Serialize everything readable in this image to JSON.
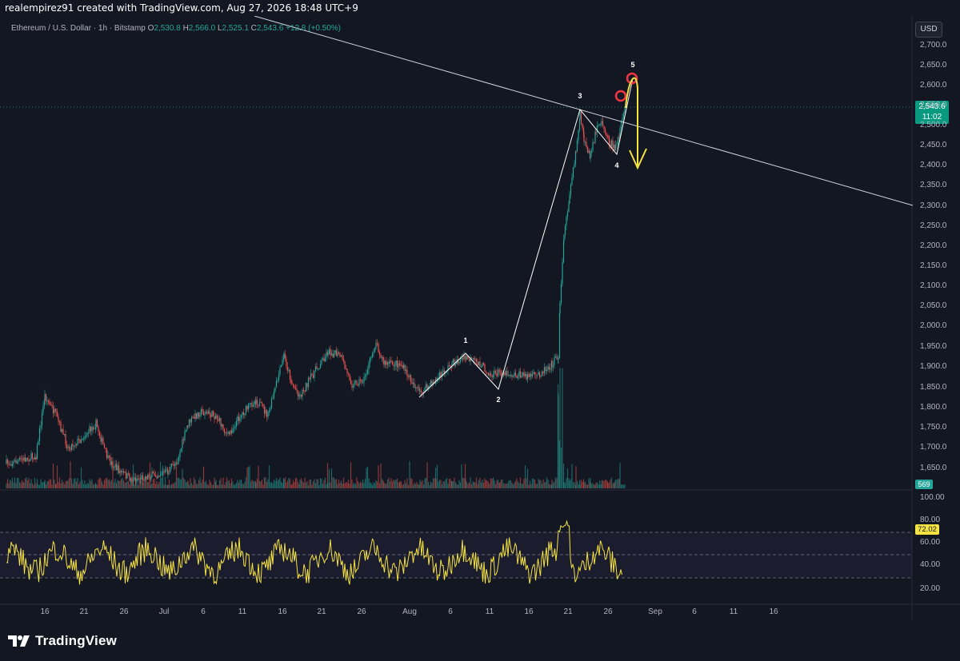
{
  "header": {
    "caption": "realempirez91 created with TradingView.com, Aug 27, 2026 18:48 UTC+9"
  },
  "symbol": {
    "name": "Ethereum / U.S. Dollar · 1h · Bitstamp",
    "o_label": "O",
    "o": "2,530.8",
    "h_label": "H",
    "h": "2,566.0",
    "l_label": "L",
    "l": "2,525.1",
    "c_label": "C",
    "c": "2,543.6",
    "change": "+12.8 (+0.50%)"
  },
  "currency_button": "USD",
  "price_tag": {
    "price": "2,543.6",
    "countdown": "11:02"
  },
  "volume_tag": "569",
  "rsi_tag": "72.02",
  "price_axis": [
    "2,700.0",
    "2,650.0",
    "2,600.0",
    "2,550.0",
    "2,500.0",
    "2,450.0",
    "2,400.0",
    "2,350.0",
    "2,300.0",
    "2,250.0",
    "2,200.0",
    "2,150.0",
    "2,100.0",
    "2,050.0",
    "2,000.0",
    "1,950.0",
    "1,900.0",
    "1,850.0",
    "1,800.0",
    "1,750.0",
    "1,700.0",
    "1,650.0"
  ],
  "rsi_axis": [
    "100.00",
    "80.00",
    "60.00",
    "40.00",
    "20.00"
  ],
  "time_axis": [
    "16",
    "21",
    "26",
    "Jul",
    "6",
    "11",
    "16",
    "21",
    "26",
    "Aug",
    "6",
    "11",
    "16",
    "21",
    "26",
    "Sep",
    "6",
    "11",
    "16"
  ],
  "wave_labels": [
    "1",
    "2",
    "3",
    "4",
    "5"
  ],
  "colors": {
    "background": "#131722",
    "up": "#26a69a",
    "down": "#ef5350",
    "rsi": "#f5e342",
    "annotation": "#f5e342",
    "circle": "#f23645",
    "trendline": "#d1d4dc"
  },
  "footer": {
    "brand": "TradingView"
  }
}
